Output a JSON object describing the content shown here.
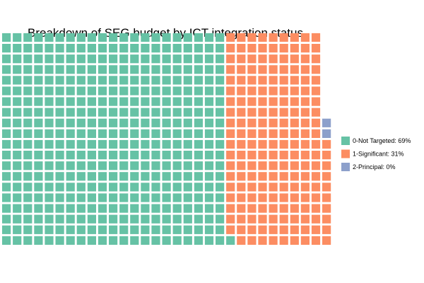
{
  "chart_data": {
    "type": "waffle",
    "title": "Breakdown of SEG budget by ICT integration status",
    "rows": 20,
    "series": [
      {
        "name": "0-Not Targeted: 69%",
        "category": "0-Not Targeted",
        "percent": 69,
        "squares": 421,
        "color": "#66c2a5"
      },
      {
        "name": "1-Significant: 31%",
        "category": "1-Significant",
        "percent": 31,
        "squares": 189,
        "color": "#fc8d62"
      },
      {
        "name": "2-Principal: 0%",
        "category": "2-Principal",
        "percent": 0,
        "squares": 2,
        "color": "#8da0cb"
      }
    ],
    "legend_position": "right"
  }
}
